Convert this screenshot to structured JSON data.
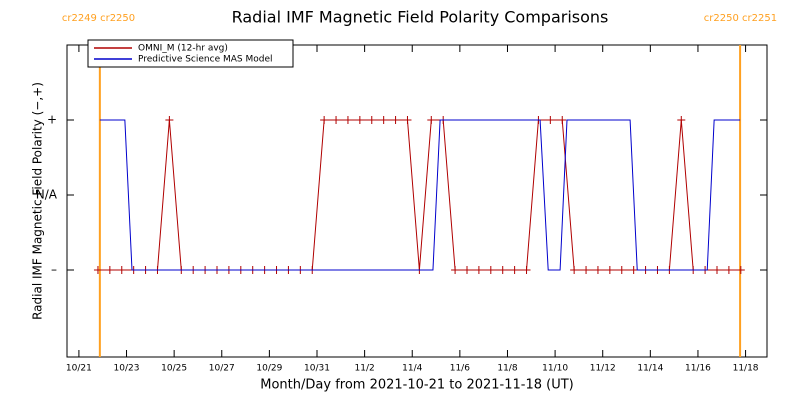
{
  "chart_data": {
    "type": "line",
    "title": "Radial IMF Magnetic Field Polarity Comparisons",
    "x_label": "Month/Day from 2021-10-21 to 2021-11-18 (UT)",
    "y_label": "Radial IMF Magnetic Field Polarity (−,+)",
    "xlim": [
      -0.5,
      28.9
    ],
    "ylim": [
      -2.16,
      2
    ],
    "xticks": [
      {
        "value": 0,
        "label": "10/21"
      },
      {
        "value": 2,
        "label": "10/23"
      },
      {
        "value": 4,
        "label": "10/25"
      },
      {
        "value": 6,
        "label": "10/27"
      },
      {
        "value": 8,
        "label": "10/29"
      },
      {
        "value": 10,
        "label": "10/31"
      },
      {
        "value": 12,
        "label": "11/2"
      },
      {
        "value": 14,
        "label": "11/4"
      },
      {
        "value": 16,
        "label": "11/6"
      },
      {
        "value": 18,
        "label": "11/8"
      },
      {
        "value": 20,
        "label": "11/10"
      },
      {
        "value": 22,
        "label": "11/12"
      },
      {
        "value": 24,
        "label": "11/14"
      },
      {
        "value": 26,
        "label": "11/16"
      },
      {
        "value": 28,
        "label": "11/18"
      }
    ],
    "yticks": [
      {
        "value": 1,
        "label": "+"
      },
      {
        "value": 0,
        "label": "N/A"
      },
      {
        "value": -1,
        "label": "–"
      }
    ],
    "legend": "upper left",
    "vlines": [
      {
        "x": 0.88,
        "label": "cr2249 cr2250",
        "color": "#ffa020"
      },
      {
        "x": 27.77,
        "label": "cr2250 cr2251",
        "color": "#ffa020"
      }
    ],
    "series": [
      {
        "name": "OMNI_M (12-hr avg)",
        "color": "#b00000",
        "markers": true,
        "x": [
          0.8,
          1.3,
          1.8,
          2.3,
          2.8,
          3.3,
          3.8,
          4.3,
          4.8,
          5.3,
          5.8,
          6.3,
          6.8,
          7.3,
          7.8,
          8.3,
          8.8,
          9.3,
          9.8,
          10.3,
          10.8,
          11.3,
          11.8,
          12.3,
          12.8,
          13.3,
          13.8,
          14.3,
          14.8,
          15.3,
          15.8,
          16.3,
          16.8,
          17.3,
          17.8,
          18.3,
          18.8,
          19.3,
          19.8,
          20.3,
          20.8,
          21.3,
          21.8,
          22.3,
          22.8,
          23.3,
          23.8,
          24.3,
          24.8,
          25.3,
          25.8,
          26.3,
          26.8,
          27.3,
          27.8
        ],
        "values": [
          -1,
          -1,
          -1,
          -1,
          -1,
          -1,
          1,
          -1,
          -1,
          -1,
          -1,
          -1,
          -1,
          -1,
          -1,
          -1,
          -1,
          -1,
          -1,
          1,
          1,
          1,
          1,
          1,
          1,
          1,
          1,
          -1,
          1,
          1,
          -1,
          -1,
          -1,
          -1,
          -1,
          -1,
          -1,
          1,
          1,
          1,
          -1,
          -1,
          -1,
          -1,
          -1,
          -1,
          -1,
          -1,
          -1,
          1,
          -1,
          -1,
          -1,
          -1,
          -1
        ]
      },
      {
        "name": "Predictive Science MAS Model",
        "color": "#0000cc",
        "markers": false,
        "x": [
          0.88,
          1.93,
          2.23,
          14.87,
          15.17,
          19.37,
          19.71,
          20.21,
          20.5,
          23.15,
          23.45,
          26.39,
          26.68,
          27.77
        ],
        "values": [
          1,
          1,
          -1,
          -1,
          1,
          1,
          -1,
          -1,
          1,
          1,
          -1,
          -1,
          1,
          1
        ]
      }
    ]
  }
}
